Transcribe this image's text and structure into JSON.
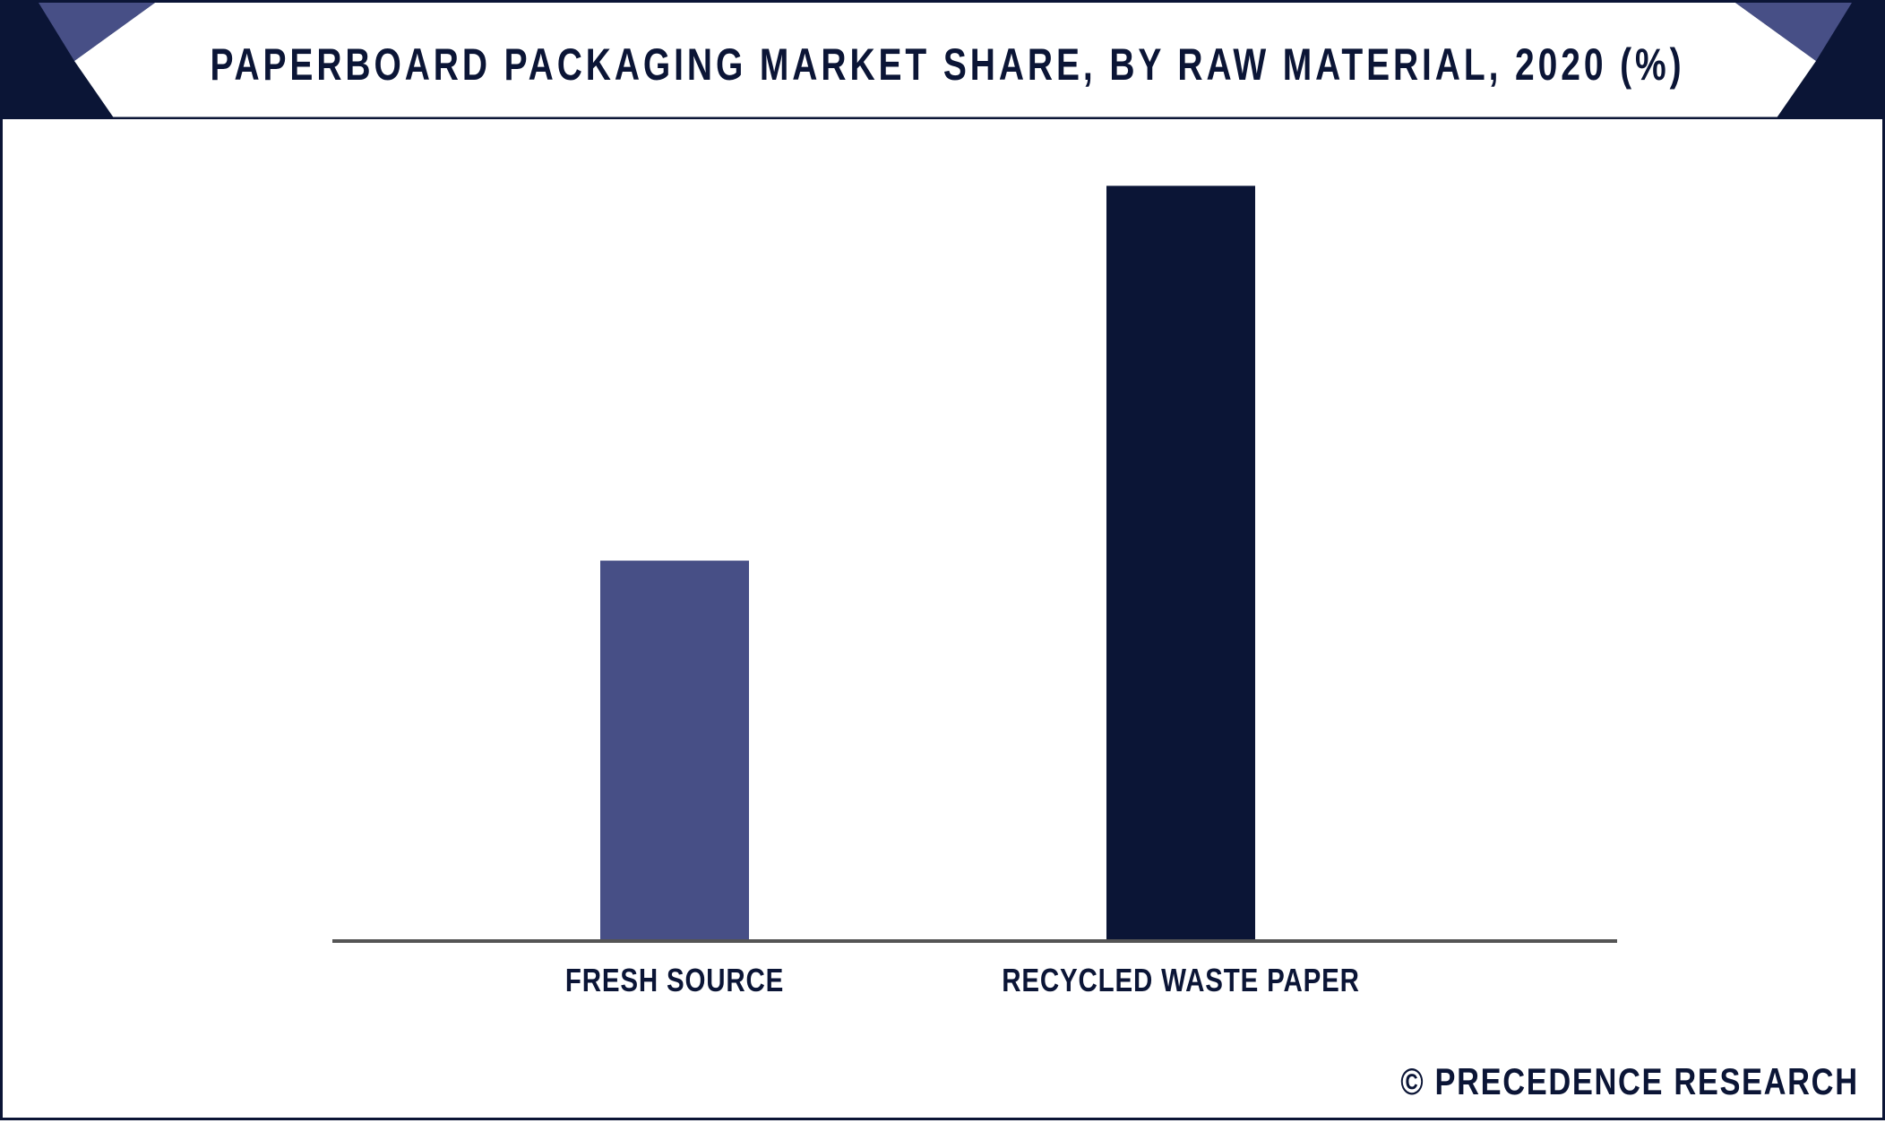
{
  "title": "PAPERBOARD PACKAGING MARKET SHARE, BY RAW MATERIAL, 2020 (%)",
  "watermark": "© PRECEDENCE RESEARCH",
  "colors": {
    "navy": "#0b1536",
    "slate_blue": "#474f86",
    "axis": "#555555"
  },
  "chart_data": {
    "type": "bar",
    "title": "PAPERBOARD PACKAGING MARKET SHARE, BY RAW MATERIAL, 2020 (%)",
    "categories": [
      "FRESH SOURCE",
      "RECYCLED WASTE PAPER"
    ],
    "values": [
      33.5,
      66.5
    ],
    "bar_colors": [
      "#474f86",
      "#0b1536"
    ],
    "xlabel": "",
    "ylabel": "",
    "ylim": [
      0,
      70
    ],
    "grid": false,
    "legend": "none"
  }
}
